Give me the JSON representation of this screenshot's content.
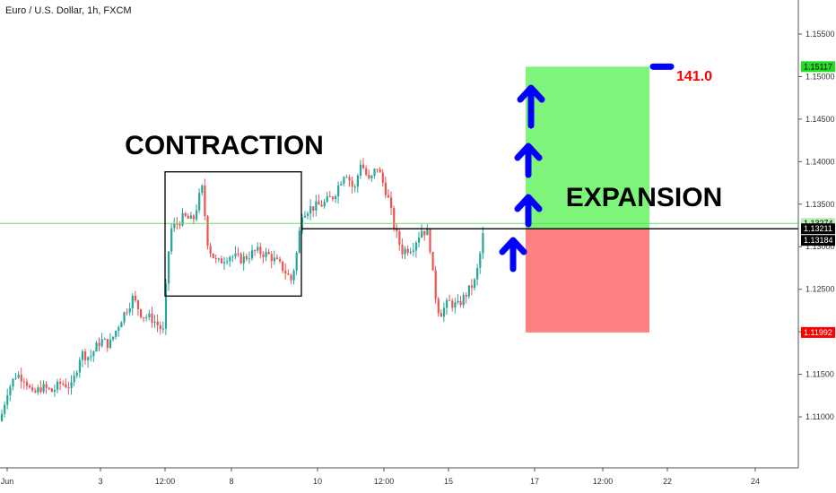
{
  "header": {
    "symbol_title": "Euro / U.S. Dollar, 1h, FXCM"
  },
  "annotations": {
    "contraction": "CONTRACTION",
    "expansion": "EXPANSION",
    "target_value": "141.0"
  },
  "colors": {
    "bull": "#26a69a",
    "bear": "#ef5350",
    "profit_zone": "#7ef57a",
    "loss_zone": "#ff8080",
    "arrow": "#0000ff",
    "target_text": "#ff0000",
    "green_line": "#66dd66",
    "entry_line": "#000000"
  },
  "price_axis": {
    "ticks": [
      "1.15500",
      "1.15000",
      "1.14500",
      "1.14000",
      "1.13500",
      "1.13000",
      "1.12500",
      "1.12000",
      "1.11500",
      "1.11000"
    ],
    "badges": [
      {
        "text": "1.15117",
        "bg": "#22dd22",
        "fg": "#000000"
      },
      {
        "text": "1.13274",
        "bg": "#b8f0b8",
        "fg": "#000000"
      },
      {
        "text": "36:19",
        "bg": "#b8f0b8",
        "fg": "#000000"
      },
      {
        "text": "1.13211",
        "bg": "#000000",
        "fg": "#ffffff"
      },
      {
        "text": "1.13184",
        "bg": "#000000",
        "fg": "#ffffff"
      },
      {
        "text": "1.11992",
        "bg": "#ff0000",
        "fg": "#ffffff"
      }
    ]
  },
  "time_axis": {
    "ticks": [
      "Jun",
      "3",
      "12:00",
      "8",
      "10",
      "12:00",
      "15",
      "17",
      "12:00",
      "22",
      "24"
    ]
  },
  "chart_data": {
    "type": "candlestick",
    "symbol": "Euro / U.S. Dollar, 1h, FXCM",
    "y_range": [
      1.104,
      1.159
    ],
    "price_path": [
      [
        0,
        1.1095
      ],
      [
        8,
        1.113
      ],
      [
        18,
        1.115
      ],
      [
        28,
        1.1145
      ],
      [
        36,
        1.1125
      ],
      [
        46,
        1.1135
      ],
      [
        58,
        1.113
      ],
      [
        68,
        1.114
      ],
      [
        80,
        1.1135
      ],
      [
        90,
        1.1175
      ],
      [
        100,
        1.117
      ],
      [
        112,
        1.119
      ],
      [
        122,
        1.1185
      ],
      [
        135,
        1.1215
      ],
      [
        148,
        1.124
      ],
      [
        158,
        1.122
      ],
      [
        170,
        1.1215
      ],
      [
        182,
        1.12
      ],
      [
        186,
        1.127
      ],
      [
        190,
        1.132
      ],
      [
        205,
        1.1335
      ],
      [
        215,
        1.133
      ],
      [
        225,
        1.137
      ],
      [
        232,
        1.13
      ],
      [
        242,
        1.128
      ],
      [
        255,
        1.129
      ],
      [
        270,
        1.1285
      ],
      [
        285,
        1.1295
      ],
      [
        300,
        1.129
      ],
      [
        315,
        1.1275
      ],
      [
        325,
        1.126
      ],
      [
        332,
        1.13
      ],
      [
        336,
        1.134
      ],
      [
        345,
        1.1345
      ],
      [
        360,
        1.135
      ],
      [
        372,
        1.136
      ],
      [
        385,
        1.139
      ],
      [
        395,
        1.1365
      ],
      [
        402,
        1.14
      ],
      [
        412,
        1.1375
      ],
      [
        420,
        1.1395
      ],
      [
        432,
        1.136
      ],
      [
        440,
        1.132
      ],
      [
        448,
        1.1295
      ],
      [
        460,
        1.13
      ],
      [
        470,
        1.132
      ],
      [
        478,
        1.1315
      ],
      [
        484,
        1.125
      ],
      [
        490,
        1.122
      ],
      [
        500,
        1.1235
      ],
      [
        510,
        1.123
      ],
      [
        520,
        1.1245
      ],
      [
        530,
        1.126
      ],
      [
        535,
        1.129
      ],
      [
        540,
        1.1325
      ]
    ],
    "contraction_box": {
      "x_start": 184,
      "x_end": 336,
      "high": 1.1388,
      "low": 1.1242
    },
    "entry_level": 1.13211,
    "take_profit": 1.15117,
    "stop_loss": 1.11992,
    "current_price": 1.13274
  }
}
